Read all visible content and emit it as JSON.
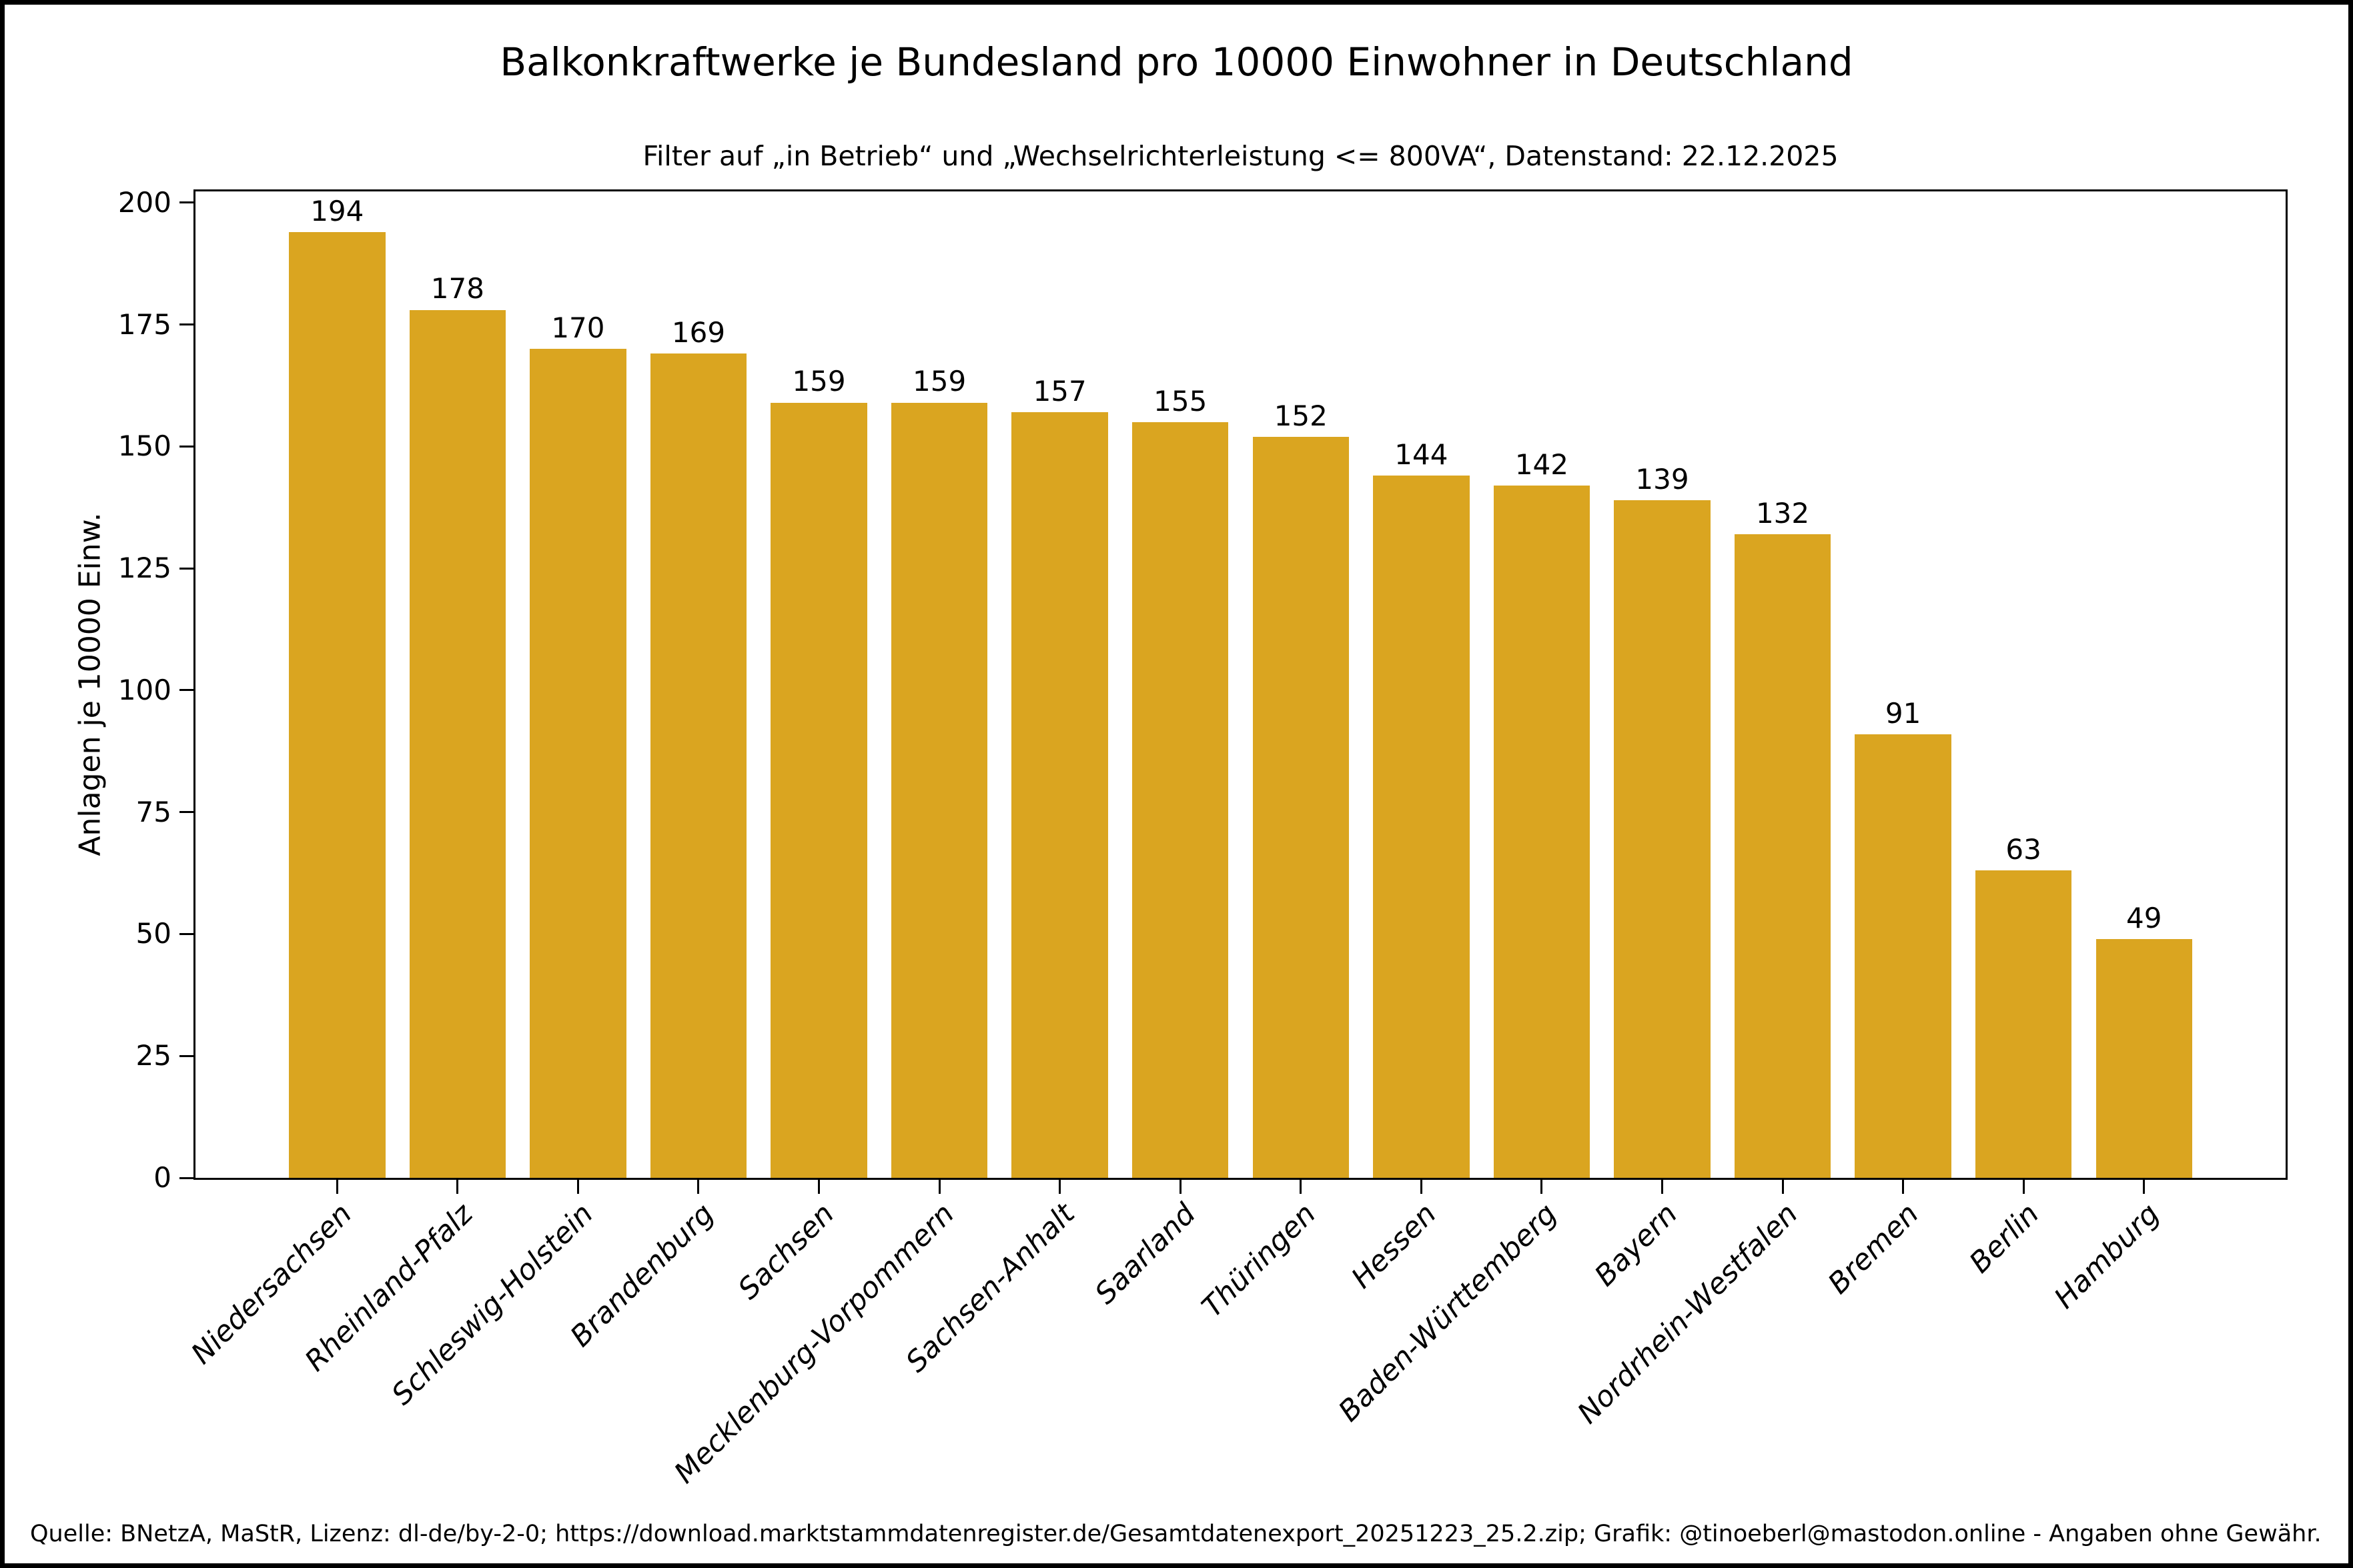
{
  "figure": {
    "title": "Balkonkraftwerke je Bundesland pro 10000 Einwohner in Deutschland",
    "subtitle": "Filter auf „in Betrieb“ und „Wechselrichterleistung <= 800VA“, Datenstand: 22.12.2025",
    "source": "Quelle: BNetzA, MaStR, Lizenz: dl-de/by-2-0; https://download.marktstammdatenregister.de/Gesamtdatenexport_20251223_25.2.zip; Grafik: @tinoeberl@mastodon.online - Angaben ohne Gewähr."
  },
  "chart_data": {
    "type": "bar",
    "title": "Balkonkraftwerke je Bundesland pro 10000 Einwohner in Deutschland",
    "subtitle": "Filter auf „in Betrieb“ und „Wechselrichterleistung <= 800VA“, Datenstand: 22.12.2025",
    "xlabel": "",
    "ylabel": "Anlagen je 10000 Einw.",
    "categories": [
      "Niedersachsen",
      "Rheinland-Pfalz",
      "Schleswig-Holstein",
      "Brandenburg",
      "Sachsen",
      "Mecklenburg-Vorpommern",
      "Sachsen-Anhalt",
      "Saarland",
      "Thüringen",
      "Hessen",
      "Baden-Württemberg",
      "Bayern",
      "Nordrhein-Westfalen",
      "Bremen",
      "Berlin",
      "Hamburg"
    ],
    "values": [
      194,
      178,
      170,
      169,
      159,
      159,
      157,
      155,
      152,
      144,
      142,
      139,
      132,
      91,
      63,
      49
    ],
    "yticks": [
      0,
      25,
      50,
      75,
      100,
      125,
      150,
      175,
      200
    ],
    "ylim": [
      0,
      202.3
    ],
    "bar_color": "#DAA520",
    "grid": false,
    "legend_position": "none",
    "bar_value_labels": true,
    "x_label_rotation_deg": 45,
    "x_label_style": "italic"
  }
}
